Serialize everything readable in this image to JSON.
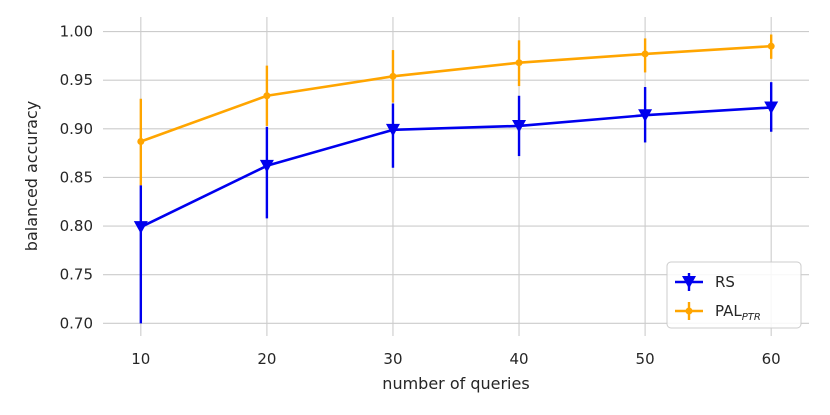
{
  "chart_data": {
    "type": "line",
    "x": [
      10,
      20,
      30,
      40,
      50,
      60
    ],
    "xlabel": "number of queries",
    "ylabel": "balanced accuracy",
    "xticks": [
      "10",
      "20",
      "30",
      "40",
      "50",
      "60"
    ],
    "yticks": [
      "0.70",
      "0.75",
      "0.80",
      "0.85",
      "0.90",
      "0.95",
      "1.00"
    ],
    "xlim": [
      7,
      63
    ],
    "ylim": [
      0.687,
      1.015
    ],
    "grid": true,
    "legend_position": "bottom-right",
    "series": [
      {
        "name": "RS",
        "color": "#0000ee",
        "marker": "triangle-down",
        "values": [
          0.799,
          0.862,
          0.899,
          0.903,
          0.914,
          0.922
        ],
        "err_low": [
          0.7,
          0.808,
          0.86,
          0.872,
          0.886,
          0.897
        ],
        "err_high": [
          0.842,
          0.902,
          0.926,
          0.934,
          0.943,
          0.948
        ]
      },
      {
        "name": "PAL",
        "name_subscript": "PTR",
        "color": "#ffa500",
        "marker": "point",
        "values": [
          0.887,
          0.934,
          0.954,
          0.968,
          0.977,
          0.985
        ],
        "err_low": [
          0.842,
          0.903,
          0.927,
          0.944,
          0.958,
          0.972
        ],
        "err_high": [
          0.931,
          0.965,
          0.981,
          0.991,
          0.993,
          0.997
        ]
      }
    ]
  }
}
